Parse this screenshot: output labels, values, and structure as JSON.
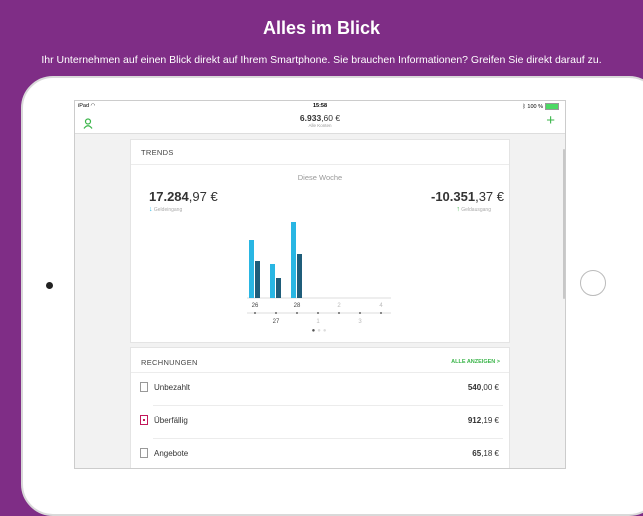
{
  "headline": "Alles im Blick",
  "subline": "Ihr Unternehmen auf einen Blick direkt auf Ihrem Smartphone. Sie brauchen Informationen? Greifen Sie direkt darauf zu.",
  "status_bar": {
    "carrier": "iPad",
    "time": "15:58",
    "battery": "100 %"
  },
  "nav": {
    "amount_main": "6.933",
    "amount_cents": ",60 €",
    "subtitle": "Alle Konten"
  },
  "trends": {
    "title": "TRENDS",
    "week_label": "Diese Woche",
    "income": {
      "main": "17.284",
      "cents": ",97 €",
      "label": "Geldeingang"
    },
    "expense": {
      "main": "-10.351",
      "cents": ",37 €",
      "label": "Geldausgang"
    }
  },
  "chart_data": {
    "type": "bar",
    "categories": [
      "26",
      "27",
      "28",
      "1",
      "2",
      "3",
      "4"
    ],
    "series": [
      {
        "values": [
          58,
          34,
          76,
          0,
          0,
          0,
          0
        ],
        "color": "#29b6e3"
      },
      {
        "values": [
          37,
          20,
          44,
          0,
          0,
          0,
          0
        ],
        "color": "#1f5d7a"
      }
    ],
    "x_labels_top": [
      "26",
      "28",
      "2",
      "4"
    ],
    "x_labels_bottom": [
      "27",
      "1",
      "3"
    ],
    "pagination": {
      "pages": 3,
      "active": 1
    }
  },
  "rechnungen": {
    "title": "RECHNUNGEN",
    "show_all": "ALLE ANZEIGEN >",
    "items": [
      {
        "label": "Unbezahlt",
        "amount_main": "540",
        "amount_cents": ",00 €"
      },
      {
        "label": "Überfällig",
        "amount_main": "912",
        "amount_cents": ",19 €"
      },
      {
        "label": "Angebote",
        "amount_main": "65",
        "amount_cents": ",18 €"
      }
    ]
  }
}
